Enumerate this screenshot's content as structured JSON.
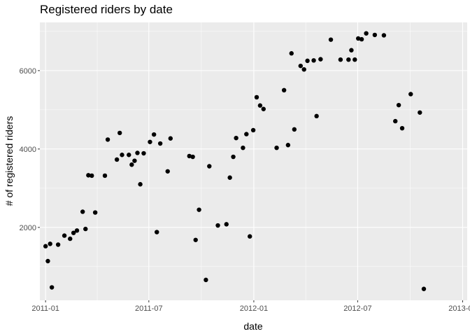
{
  "chart_data": {
    "type": "scatter",
    "title": "Registered riders by date",
    "xlabel": "date",
    "ylabel": "# of registered riders",
    "x_ticks": [
      "2011-01",
      "2011-07",
      "2012-01",
      "2012-07",
      "2013-01"
    ],
    "y_ticks": [
      2000,
      4000,
      6000
    ],
    "xlim": [
      "2010-12-22",
      "2013-01-09"
    ],
    "ylim": [
      140,
      7230
    ],
    "grid": true,
    "point_color": "#000000",
    "panel_color": "#ebebeb",
    "points": [
      {
        "x": "2011-01-01",
        "y": 1520
      },
      {
        "x": "2011-01-05",
        "y": 1140
      },
      {
        "x": "2011-01-09",
        "y": 1580
      },
      {
        "x": "2011-01-12",
        "y": 470
      },
      {
        "x": "2011-01-23",
        "y": 1560
      },
      {
        "x": "2011-02-03",
        "y": 1790
      },
      {
        "x": "2011-02-13",
        "y": 1710
      },
      {
        "x": "2011-02-19",
        "y": 1860
      },
      {
        "x": "2011-02-25",
        "y": 1920
      },
      {
        "x": "2011-03-07",
        "y": 2400
      },
      {
        "x": "2011-03-12",
        "y": 1960
      },
      {
        "x": "2011-03-17",
        "y": 3330
      },
      {
        "x": "2011-03-23",
        "y": 3320
      },
      {
        "x": "2011-03-29",
        "y": 2380
      },
      {
        "x": "2011-04-15",
        "y": 3320
      },
      {
        "x": "2011-04-20",
        "y": 4240
      },
      {
        "x": "2011-05-06",
        "y": 3730
      },
      {
        "x": "2011-05-11",
        "y": 4410
      },
      {
        "x": "2011-05-15",
        "y": 3850
      },
      {
        "x": "2011-05-27",
        "y": 3850
      },
      {
        "x": "2011-06-01",
        "y": 3600
      },
      {
        "x": "2011-06-06",
        "y": 3700
      },
      {
        "x": "2011-06-11",
        "y": 3900
      },
      {
        "x": "2011-06-16",
        "y": 3100
      },
      {
        "x": "2011-06-22",
        "y": 3890
      },
      {
        "x": "2011-07-03",
        "y": 4180
      },
      {
        "x": "2011-07-10",
        "y": 4370
      },
      {
        "x": "2011-07-15",
        "y": 1880
      },
      {
        "x": "2011-07-21",
        "y": 4140
      },
      {
        "x": "2011-08-03",
        "y": 3430
      },
      {
        "x": "2011-08-08",
        "y": 4270
      },
      {
        "x": "2011-09-10",
        "y": 3820
      },
      {
        "x": "2011-09-16",
        "y": 3800
      },
      {
        "x": "2011-09-21",
        "y": 1680
      },
      {
        "x": "2011-09-27",
        "y": 2450
      },
      {
        "x": "2011-10-09",
        "y": 660
      },
      {
        "x": "2011-10-15",
        "y": 3560
      },
      {
        "x": "2011-10-30",
        "y": 2050
      },
      {
        "x": "2011-11-14",
        "y": 2080
      },
      {
        "x": "2011-11-20",
        "y": 3270
      },
      {
        "x": "2011-11-26",
        "y": 3800
      },
      {
        "x": "2011-12-01",
        "y": 4280
      },
      {
        "x": "2011-12-13",
        "y": 4030
      },
      {
        "x": "2011-12-19",
        "y": 4380
      },
      {
        "x": "2011-12-25",
        "y": 1770
      },
      {
        "x": "2011-12-31",
        "y": 4480
      },
      {
        "x": "2012-01-06",
        "y": 5320
      },
      {
        "x": "2012-01-12",
        "y": 5110
      },
      {
        "x": "2012-01-18",
        "y": 5020
      },
      {
        "x": "2012-02-10",
        "y": 4030
      },
      {
        "x": "2012-02-23",
        "y": 5500
      },
      {
        "x": "2012-03-01",
        "y": 4100
      },
      {
        "x": "2012-03-07",
        "y": 6440
      },
      {
        "x": "2012-03-12",
        "y": 4500
      },
      {
        "x": "2012-03-23",
        "y": 6120
      },
      {
        "x": "2012-03-29",
        "y": 6030
      },
      {
        "x": "2012-04-04",
        "y": 6250
      },
      {
        "x": "2012-04-15",
        "y": 6260
      },
      {
        "x": "2012-04-20",
        "y": 4840
      },
      {
        "x": "2012-04-27",
        "y": 6290
      },
      {
        "x": "2012-05-15",
        "y": 6790
      },
      {
        "x": "2012-06-01",
        "y": 6280
      },
      {
        "x": "2012-06-15",
        "y": 6280
      },
      {
        "x": "2012-06-20",
        "y": 6520
      },
      {
        "x": "2012-06-26",
        "y": 6280
      },
      {
        "x": "2012-07-02",
        "y": 6820
      },
      {
        "x": "2012-07-08",
        "y": 6800
      },
      {
        "x": "2012-07-16",
        "y": 6950
      },
      {
        "x": "2012-07-31",
        "y": 6910
      },
      {
        "x": "2012-08-16",
        "y": 6900
      },
      {
        "x": "2012-09-05",
        "y": 4710
      },
      {
        "x": "2012-09-11",
        "y": 5120
      },
      {
        "x": "2012-09-17",
        "y": 4530
      },
      {
        "x": "2012-10-02",
        "y": 5400
      },
      {
        "x": "2012-10-18",
        "y": 4930
      },
      {
        "x": "2012-10-25",
        "y": 430
      }
    ]
  }
}
